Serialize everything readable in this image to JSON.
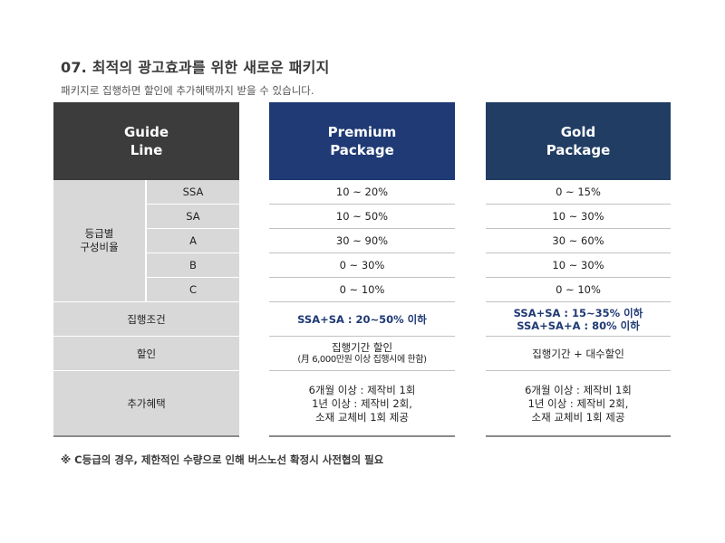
{
  "title": "07. 최적의 광고효과를 위한 새로운 패키지",
  "subtitle": "패키지로 집행하면 할인에 추가혜택까지 받을 수 있습니다.",
  "guide": {
    "header_line1": "Guide",
    "header_line2": "Line",
    "group_label_line1": "등급별",
    "group_label_line2": "구성비율",
    "grades": [
      "SSA",
      "SA",
      "A",
      "B",
      "C"
    ],
    "row_condition": "집행조건",
    "row_discount": "할인",
    "row_benefit": "추가혜택"
  },
  "premium": {
    "header_line1": "Premium",
    "header_line2": "Package",
    "ratios": [
      "10 ~ 20%",
      "10 ~ 50%",
      "30 ~ 90%",
      "0 ~ 30%",
      "0 ~ 10%"
    ],
    "condition": "SSA+SA : 20~50% 이하",
    "discount_line1": "집행기간 할인",
    "discount_line2": "(月 6,000만원 이상 집행시에 한함)",
    "benefit_line1": "6개월 이상 : 제작비 1회",
    "benefit_line2": "1년 이상 : 제작비 2회,",
    "benefit_line3": "소재 교체비 1회 제공"
  },
  "gold": {
    "header_line1": "Gold",
    "header_line2": "Package",
    "ratios": [
      "0 ~ 15%",
      "10 ~ 30%",
      "30 ~ 60%",
      "10 ~ 30%",
      "0 ~ 10%"
    ],
    "condition_line1": "SSA+SA : 15~35% 이하",
    "condition_line2": "SSA+SA+A : 80% 이하",
    "discount": "집행기간 + 대수할인",
    "benefit_line1": "6개월 이상 : 제작비 1회",
    "benefit_line2": "1년 이상 : 제작비 2회,",
    "benefit_line3": "소재 교체비 1회 제공"
  },
  "note": "※ C등급의 경우, 제한적인 수량으로 인해 버스노선 확정시 사전협의 필요",
  "colors": {
    "guide_header": "#3c3c3c",
    "premium_header": "#1f3a74",
    "gold_header": "#213d63",
    "gray_cell": "#d8d8d8",
    "accent_text": "#1f3a74"
  }
}
